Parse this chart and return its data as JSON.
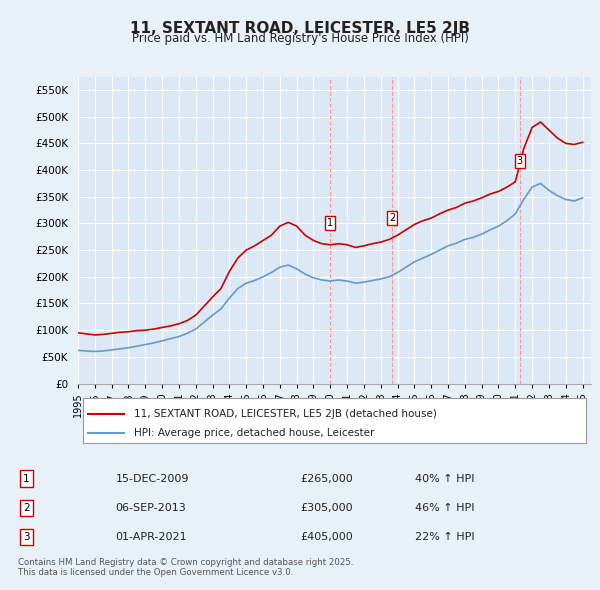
{
  "title": "11, SEXTANT ROAD, LEICESTER, LE5 2JB",
  "subtitle": "Price paid vs. HM Land Registry's House Price Index (HPI)",
  "bg_color": "#e8f0f8",
  "plot_bg_color": "#dce8f5",
  "grid_color": "#ffffff",
  "red_line_color": "#cc0000",
  "blue_line_color": "#6699cc",
  "ylim": [
    0,
    575000
  ],
  "yticks": [
    0,
    50000,
    100000,
    150000,
    200000,
    250000,
    300000,
    350000,
    400000,
    450000,
    500000,
    550000
  ],
  "ytick_labels": [
    "£0",
    "£50K",
    "£100K",
    "£150K",
    "£200K",
    "£250K",
    "£300K",
    "£350K",
    "£400K",
    "£450K",
    "£500K",
    "£550K"
  ],
  "xlim_start": 1995.0,
  "xlim_end": 2025.5,
  "transactions": [
    {
      "num": 1,
      "date": "15-DEC-2009",
      "price": 265000,
      "pct": "40%",
      "dir": "↑",
      "x": 2009.96
    },
    {
      "num": 2,
      "date": "06-SEP-2013",
      "price": 305000,
      "pct": "46%",
      "dir": "↑",
      "x": 2013.67
    },
    {
      "num": 3,
      "date": "01-APR-2021",
      "price": 405000,
      "pct": "22%",
      "dir": "↑",
      "x": 2021.25
    }
  ],
  "legend_label_red": "11, SEXTANT ROAD, LEICESTER, LE5 2JB (detached house)",
  "legend_label_blue": "HPI: Average price, detached house, Leicester",
  "footer": "Contains HM Land Registry data © Crown copyright and database right 2025.\nThis data is licensed under the Open Government Licence v3.0.",
  "red_x": [
    1995.0,
    1995.5,
    1996.0,
    1996.5,
    1997.0,
    1997.5,
    1998.0,
    1998.5,
    1999.0,
    1999.5,
    2000.0,
    2000.5,
    2001.0,
    2001.5,
    2002.0,
    2002.5,
    2003.0,
    2003.5,
    2004.0,
    2004.5,
    2005.0,
    2005.5,
    2006.0,
    2006.5,
    2007.0,
    2007.5,
    2008.0,
    2008.5,
    2009.0,
    2009.5,
    2010.0,
    2010.5,
    2011.0,
    2011.5,
    2012.0,
    2012.5,
    2013.0,
    2013.5,
    2014.0,
    2014.5,
    2015.0,
    2015.5,
    2016.0,
    2016.5,
    2017.0,
    2017.5,
    2018.0,
    2018.5,
    2019.0,
    2019.5,
    2020.0,
    2020.5,
    2021.0,
    2021.5,
    2022.0,
    2022.5,
    2023.0,
    2023.5,
    2024.0,
    2024.5,
    2025.0
  ],
  "red_y": [
    95000,
    93000,
    91000,
    92000,
    94000,
    96000,
    97000,
    99000,
    100000,
    102000,
    105000,
    108000,
    112000,
    118000,
    128000,
    145000,
    162000,
    178000,
    210000,
    235000,
    250000,
    258000,
    268000,
    278000,
    295000,
    302000,
    295000,
    278000,
    268000,
    262000,
    260000,
    262000,
    260000,
    255000,
    258000,
    262000,
    265000,
    270000,
    278000,
    288000,
    298000,
    305000,
    310000,
    318000,
    325000,
    330000,
    338000,
    342000,
    348000,
    355000,
    360000,
    368000,
    378000,
    440000,
    480000,
    490000,
    475000,
    460000,
    450000,
    448000,
    452000
  ],
  "blue_x": [
    1995.0,
    1995.5,
    1996.0,
    1996.5,
    1997.0,
    1997.5,
    1998.0,
    1998.5,
    1999.0,
    1999.5,
    2000.0,
    2000.5,
    2001.0,
    2001.5,
    2002.0,
    2002.5,
    2003.0,
    2003.5,
    2004.0,
    2004.5,
    2005.0,
    2005.5,
    2006.0,
    2006.5,
    2007.0,
    2007.5,
    2008.0,
    2008.5,
    2009.0,
    2009.5,
    2010.0,
    2010.5,
    2011.0,
    2011.5,
    2012.0,
    2012.5,
    2013.0,
    2013.5,
    2014.0,
    2014.5,
    2015.0,
    2015.5,
    2016.0,
    2016.5,
    2017.0,
    2017.5,
    2018.0,
    2018.5,
    2019.0,
    2019.5,
    2020.0,
    2020.5,
    2021.0,
    2021.5,
    2022.0,
    2022.5,
    2023.0,
    2023.5,
    2024.0,
    2024.5,
    2025.0
  ],
  "blue_y": [
    62000,
    61000,
    60000,
    61000,
    63000,
    65000,
    67000,
    70000,
    73000,
    76000,
    80000,
    84000,
    88000,
    94000,
    102000,
    115000,
    128000,
    140000,
    160000,
    178000,
    188000,
    193000,
    200000,
    208000,
    218000,
    222000,
    215000,
    205000,
    198000,
    194000,
    192000,
    194000,
    192000,
    188000,
    190000,
    193000,
    196000,
    200000,
    208000,
    218000,
    228000,
    235000,
    242000,
    250000,
    258000,
    263000,
    270000,
    274000,
    280000,
    288000,
    295000,
    305000,
    318000,
    345000,
    368000,
    375000,
    362000,
    352000,
    345000,
    342000,
    348000
  ]
}
